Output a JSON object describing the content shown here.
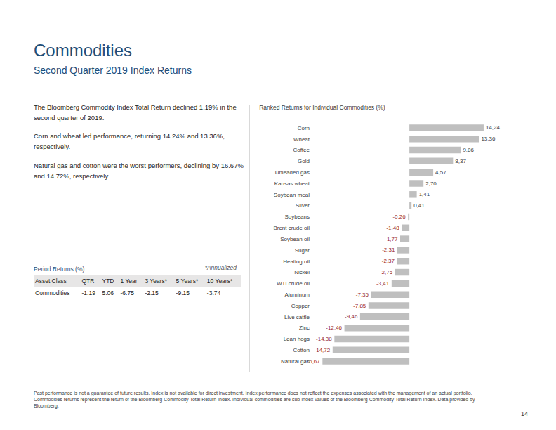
{
  "page": {
    "title": "Commodities",
    "subtitle": "Second Quarter 2019 Index Returns",
    "paragraphs": [
      "The Bloomberg Commodity Index Total Return declined 1.19% in the second quarter of 2019.",
      "Corn and wheat led performance, returning 14.24% and 13.36%, respectively.",
      "Natural gas and cotton were the worst performers, declining by 16.67% and 14.72%, respectively."
    ],
    "period_returns": {
      "title": "Period Returns (%)",
      "note": "*Annualized",
      "columns": [
        "Asset Class",
        "QTR",
        "YTD",
        "1 Year",
        "3 Years*",
        "5 Years*",
        "10 Years*"
      ],
      "rows": [
        [
          "Commodities",
          -1.19,
          5.06,
          -6.75,
          -2.15,
          -9.15,
          -3.74
        ]
      ]
    },
    "footnotes": [
      "Past performance is not a guarantee of future results. Index is not available for direct investment. Index performance does not reflect the expenses associated with the management of an actual portfolio.",
      "Commodities returns represent the return of the Bloomberg Commodity Total Return Index. Individual commodities are sub-index values of the Bloomberg Commodity Total Return Index. Data provided by Bloomberg."
    ],
    "page_number": 14
  },
  "chart_data": {
    "type": "bar",
    "title": "Ranked Returns for Individual Commodities (%)",
    "orientation": "horizontal",
    "categories": [
      "Corn",
      "Wheat",
      "Coffee",
      "Gold",
      "Unleaded gas",
      "Kansas wheat",
      "Soybean meal",
      "Silver",
      "Soybeans",
      "Brent crude oil",
      "Soybean oil",
      "Sugar",
      "Heating oil",
      "Nickel",
      "WTI crude oil",
      "Aluminum",
      "Copper",
      "Live cattle",
      "Zinc",
      "Lean hogs",
      "Cotton",
      "Natural gas"
    ],
    "values": [
      14.24,
      13.36,
      9.86,
      8.37,
      4.57,
      2.7,
      1.41,
      0.41,
      -0.26,
      -1.48,
      -1.77,
      -2.31,
      -2.37,
      -2.75,
      -3.41,
      -7.35,
      -7.85,
      -9.46,
      -12.46,
      -14.38,
      -14.72,
      -16.67
    ],
    "value_labels": [
      "14,24",
      "13,36",
      "9,86",
      "8,37",
      "4,57",
      "2,70",
      "1,41",
      "0,41",
      "-0,26",
      "-1,48",
      "-1,77",
      "-2,31",
      "-2,37",
      "-2,75",
      "-3,41",
      "-7,35",
      "-7,85",
      "-9,46",
      "-12,46",
      "-14,38",
      "-14,72",
      "-16,67"
    ],
    "color": "#bfbfbf",
    "data_labels": true,
    "tick_labels": "y",
    "grid": false,
    "xlim": [
      -19,
      16
    ]
  }
}
